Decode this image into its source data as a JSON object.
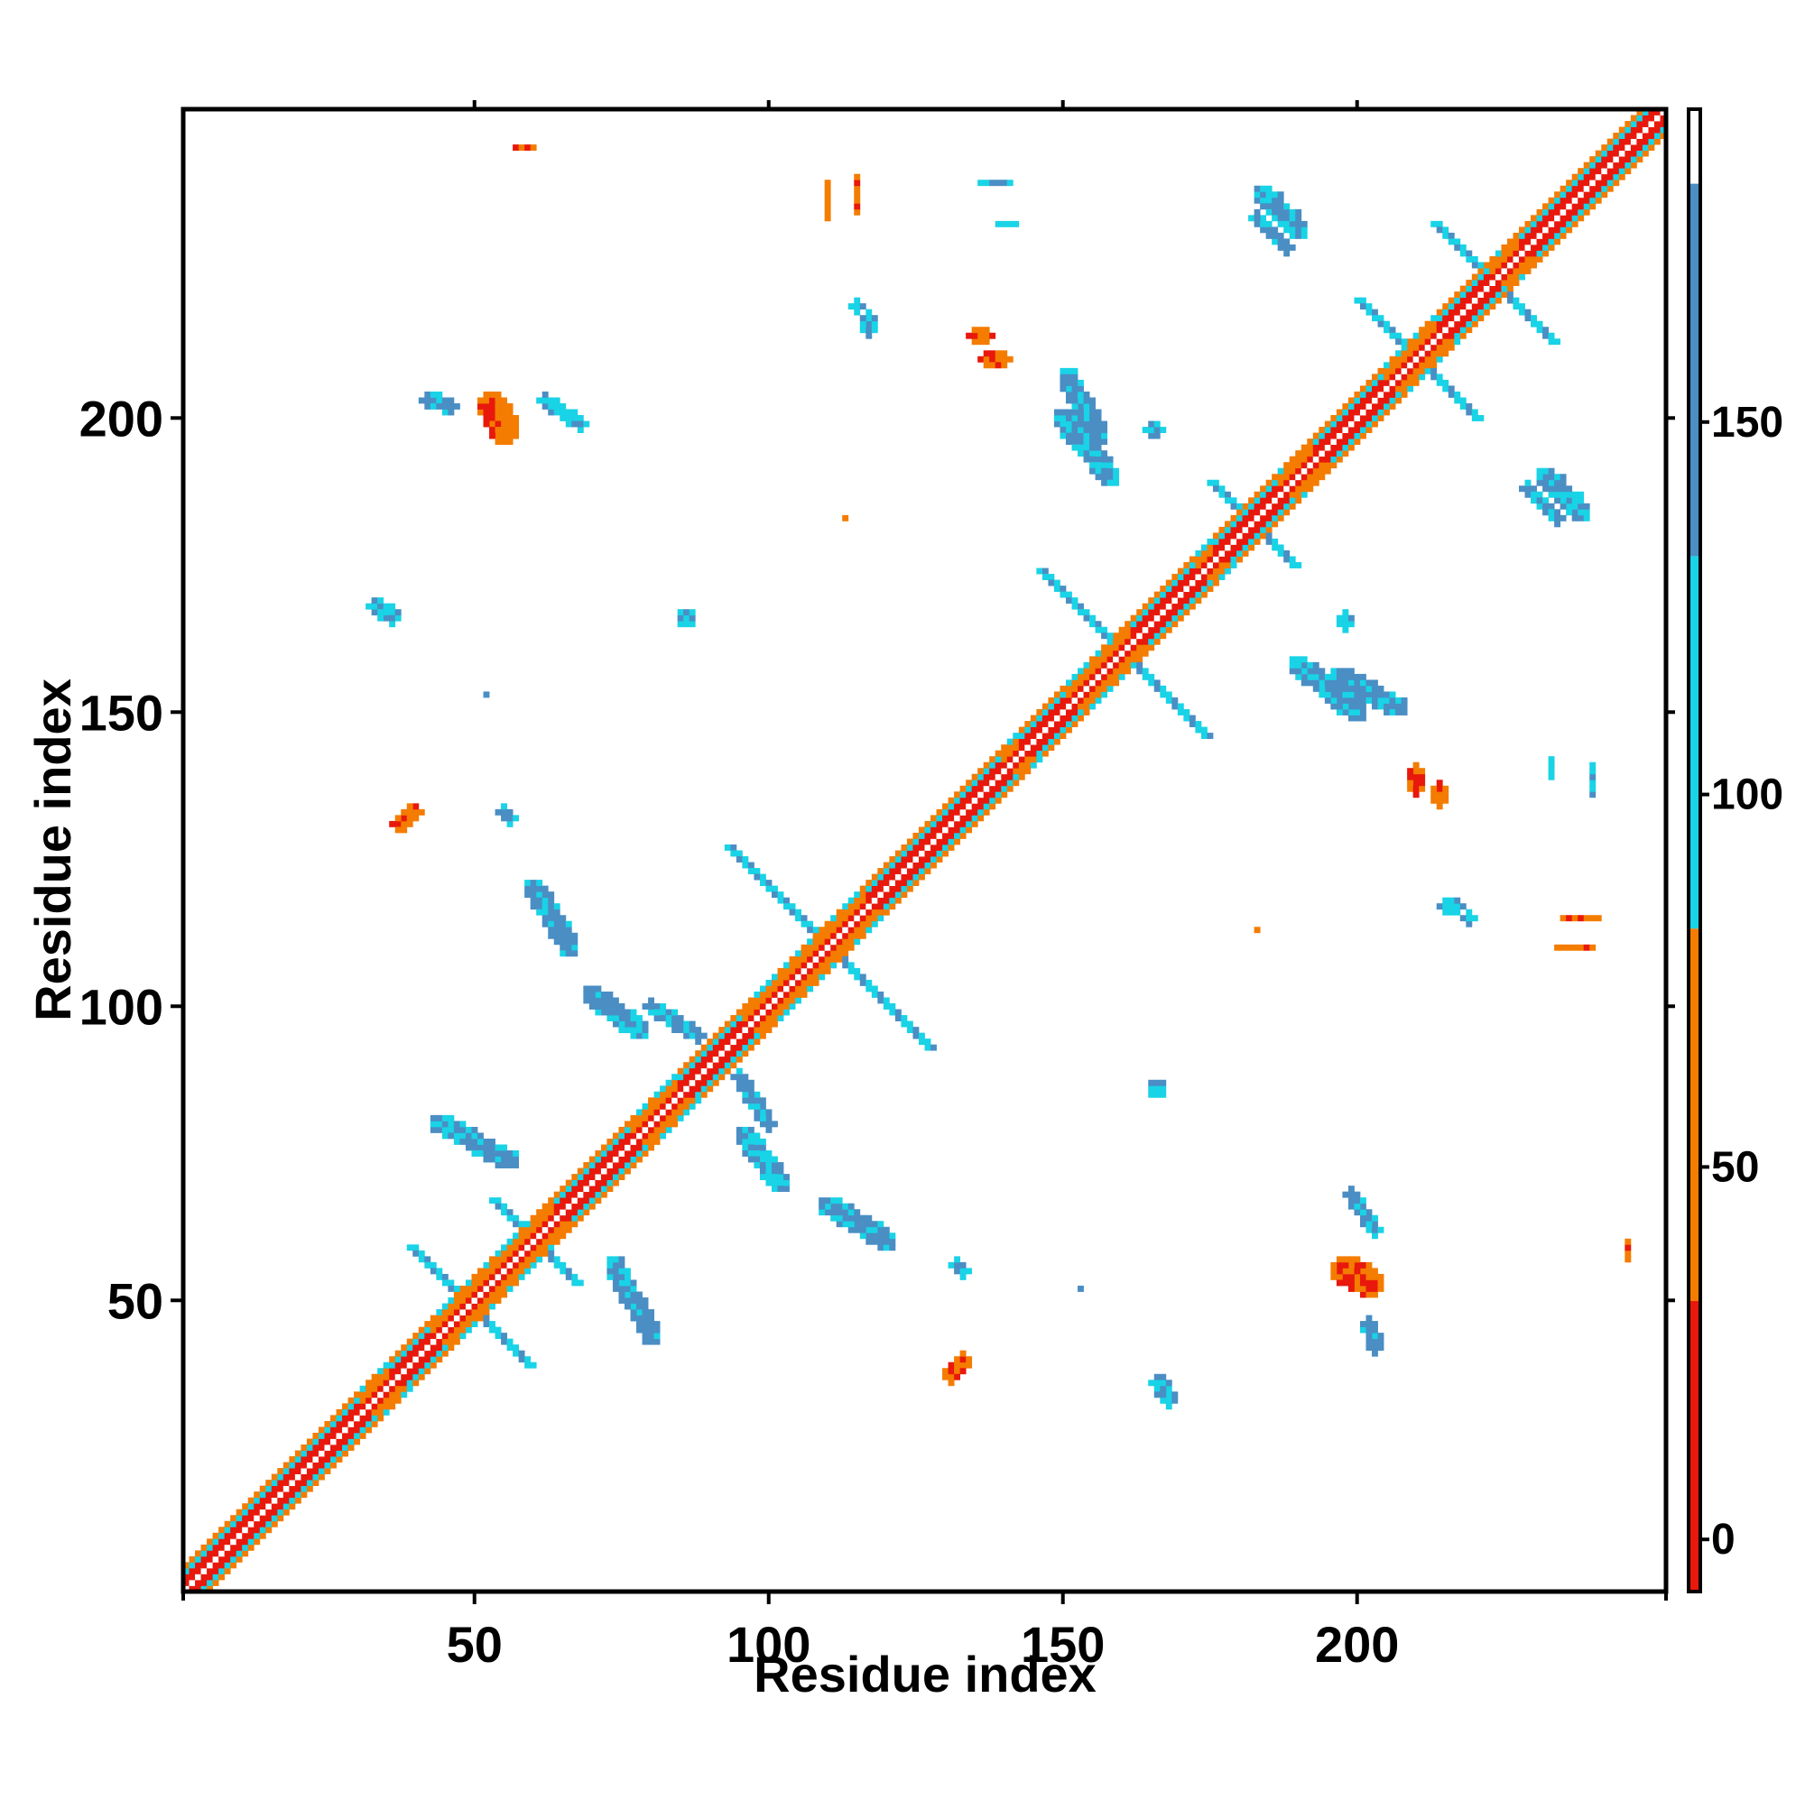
{
  "chart_data": {
    "type": "heatmap",
    "title": "",
    "xlabel": "Residue index",
    "ylabel": "Residue index",
    "xlim": [
      1,
      252
    ],
    "ylim": [
      1,
      252
    ],
    "xticks": [
      50,
      100,
      150,
      200
    ],
    "yticks": [
      50,
      100,
      150,
      200
    ],
    "grid": false,
    "colorbar": {
      "ticks": [
        0,
        50,
        100,
        150
      ],
      "range": [
        -7,
        192
      ],
      "bands": [
        {
          "from": -7,
          "to": 32,
          "color": "#e8180c"
        },
        {
          "from": 32,
          "to": 82,
          "color": "#f47c00"
        },
        {
          "from": 82,
          "to": 132,
          "color": "#19d3e6"
        },
        {
          "from": 132,
          "to": 182,
          "color": "#4a8ec4"
        },
        {
          "from": 182,
          "to": 192,
          "color": "#ffffff"
        }
      ]
    },
    "structure": {
      "diagonal": {
        "from": 1,
        "to": 252
      },
      "helices": [
        [
          1,
          30
        ],
        [
          36,
          42
        ],
        [
          64,
          76
        ],
        [
          85,
          95
        ],
        [
          117,
          139
        ],
        [
          143,
          150
        ],
        [
          162,
          172
        ],
        [
          176,
          186
        ],
        [
          193,
          204
        ],
        [
          214,
          222
        ],
        [
          228,
          252
        ]
      ],
      "antiparallel": [
        {
          "i": 49,
          "j": 49,
          "half": 10
        },
        {
          "i": 60,
          "j": 60,
          "half": 7
        },
        {
          "i": 110,
          "j": 110,
          "half": 17
        },
        {
          "i": 160,
          "j": 160,
          "half": 14
        },
        {
          "i": 182,
          "j": 182,
          "half": 7
        },
        {
          "i": 210,
          "j": 210,
          "half": 10
        },
        {
          "i": 223,
          "j": 223,
          "half": 10
        }
      ],
      "patches": [
        {
          "x": 44,
          "y": 80,
          "dx": 12,
          "dy": -6,
          "w": 1.6,
          "c": 3
        },
        {
          "x": 80,
          "y": 44,
          "dx": -6,
          "dy": 12,
          "w": 1.6,
          "c": 3
        },
        {
          "x": 96,
          "y": 78,
          "dx": 6,
          "dy": -8,
          "w": 1.5,
          "c": 3
        },
        {
          "x": 78,
          "y": 96,
          "dx": -8,
          "dy": 6,
          "w": 1.5,
          "c": 3
        },
        {
          "x": 60,
          "y": 120,
          "dx": 6,
          "dy": -10,
          "w": 1.5,
          "c": 3
        },
        {
          "x": 120,
          "y": 60,
          "dx": -10,
          "dy": 6,
          "w": 1.5,
          "c": 3
        },
        {
          "x": 80,
          "y": 100,
          "dx": 8,
          "dy": -5,
          "w": 1.3,
          "c": 3
        },
        {
          "x": 100,
          "y": 80,
          "dx": -5,
          "dy": 8,
          "w": 1.3,
          "c": 3
        },
        {
          "x": 62,
          "y": 203,
          "dx": 6,
          "dy": -4,
          "w": 1.3,
          "c": 2
        },
        {
          "x": 203,
          "y": 62,
          "dx": -4,
          "dy": 6,
          "w": 1.3,
          "c": 2
        },
        {
          "x": 42,
          "y": 203,
          "dx": 4,
          "dy": -1,
          "w": 1.2,
          "c": 3
        },
        {
          "x": 203,
          "y": 42,
          "dx": -1,
          "dy": 4,
          "w": 1.2,
          "c": 3
        },
        {
          "x": 53,
          "y": 202,
          "dx": 2,
          "dy": -4,
          "w": 2.6,
          "c": 1
        },
        {
          "x": 202,
          "y": 53,
          "dx": -4,
          "dy": 2,
          "w": 2.6,
          "c": 1
        },
        {
          "x": 33,
          "y": 168,
          "dx": 3,
          "dy": -2,
          "w": 1.4,
          "c": 2
        },
        {
          "x": 168,
          "y": 33,
          "dx": -2,
          "dy": 3,
          "w": 1.4,
          "c": 2
        },
        {
          "x": 86,
          "y": 166,
          "dx": 0,
          "dy": 0,
          "w": 1.5,
          "c": 2
        },
        {
          "x": 166,
          "y": 86,
          "dx": 0,
          "dy": 0,
          "w": 1.5,
          "c": 2
        },
        {
          "x": 55,
          "y": 133,
          "dx": 1,
          "dy": -1,
          "w": 1.3,
          "c": 2
        },
        {
          "x": 133,
          "y": 55,
          "dx": -1,
          "dy": 1,
          "w": 1.3,
          "c": 2
        },
        {
          "x": 38,
          "y": 131,
          "dx": 2,
          "dy": 2,
          "w": 1.0,
          "c": 1
        },
        {
          "x": 131,
          "y": 38,
          "dx": 2,
          "dy": 2,
          "w": 1.0,
          "c": 1
        },
        {
          "x": 150,
          "y": 200,
          "dx": 8,
          "dy": -10,
          "w": 1.5,
          "c": 3
        },
        {
          "x": 200,
          "y": 150,
          "dx": -10,
          "dy": 8,
          "w": 1.5,
          "c": 3
        },
        {
          "x": 184,
          "y": 238,
          "dx": 6,
          "dy": -6,
          "w": 1.5,
          "c": 3
        },
        {
          "x": 238,
          "y": 184,
          "dx": -6,
          "dy": 6,
          "w": 1.5,
          "c": 3
        },
        {
          "x": 197,
          "y": 156,
          "dx": 10,
          "dy": -5,
          "w": 1.5,
          "c": 3
        },
        {
          "x": 156,
          "y": 197,
          "dx": -5,
          "dy": 10,
          "w": 1.5,
          "c": 3
        },
        {
          "x": 229,
          "y": 188,
          "dx": 5,
          "dy": -5,
          "w": 1.4,
          "c": 3
        },
        {
          "x": 188,
          "y": 229,
          "dx": -5,
          "dy": 5,
          "w": 1.4,
          "c": 3
        },
        {
          "x": 136,
          "y": 240,
          "dx": 5,
          "dy": 0,
          "w": 0.8,
          "c": 2
        },
        {
          "x": 240,
          "y": 136,
          "dx": 0,
          "dy": 5,
          "w": 0.8,
          "c": 2
        },
        {
          "x": 135,
          "y": 214,
          "dx": 2,
          "dy": 0,
          "w": 1.0,
          "c": 1
        },
        {
          "x": 214,
          "y": 135,
          "dx": 0,
          "dy": 2,
          "w": 1.0,
          "c": 1
        },
        {
          "x": 115,
          "y": 235,
          "dx": 0,
          "dy": 6,
          "w": 0.8,
          "c": 1
        },
        {
          "x": 235,
          "y": 115,
          "dx": 6,
          "dy": 0,
          "w": 0.8,
          "c": 1
        },
        {
          "x": 57,
          "y": 246,
          "dx": 3,
          "dy": 0,
          "w": 0.8,
          "c": 1
        },
        {
          "x": 246,
          "y": 57,
          "dx": 0,
          "dy": 3,
          "w": 0.8,
          "c": 1
        },
        {
          "x": 115,
          "y": 219,
          "dx": 0,
          "dy": 0,
          "w": 1.0,
          "c": 2
        },
        {
          "x": 219,
          "y": 115,
          "dx": 0,
          "dy": 0,
          "w": 1.0,
          "c": 2
        },
        {
          "x": 165,
          "y": 198,
          "dx": 1,
          "dy": 0,
          "w": 1.0,
          "c": 2
        },
        {
          "x": 198,
          "y": 165,
          "dx": 0,
          "dy": 1,
          "w": 1.0,
          "c": 2
        },
        {
          "x": 234,
          "y": 110,
          "dx": 6,
          "dy": 0,
          "w": 0.8,
          "c": 1
        },
        {
          "x": 110,
          "y": 234,
          "dx": 0,
          "dy": 6,
          "w": 0.8,
          "c": 1
        },
        {
          "x": 215,
          "y": 117,
          "dx": 2,
          "dy": 0,
          "w": 1.0,
          "c": 2
        },
        {
          "x": 117,
          "y": 215,
          "dx": 0,
          "dy": 2,
          "w": 1.0,
          "c": 2
        },
        {
          "x": 210,
          "y": 137,
          "dx": 0,
          "dy": 3,
          "w": 1.0,
          "c": 1
        },
        {
          "x": 137,
          "y": 210,
          "dx": 3,
          "dy": 0,
          "w": 1.0,
          "c": 1
        },
        {
          "x": 233,
          "y": 139,
          "dx": 0,
          "dy": 3,
          "w": 0.9,
          "c": 2
        },
        {
          "x": 139,
          "y": 233,
          "dx": 3,
          "dy": 0,
          "w": 0.9,
          "c": 2
        },
        {
          "x": 167,
          "y": 34,
          "dx": 0,
          "dy": 2,
          "w": 1.2,
          "c": 2
        },
        {
          "x": 34,
          "y": 167,
          "dx": 2,
          "dy": 0,
          "w": 1.2,
          "c": 2
        },
        {
          "x": 133,
          "y": 39,
          "dx": -2,
          "dy": -2,
          "w": 1.0,
          "c": 1
        },
        {
          "x": 39,
          "y": 133,
          "dx": -2,
          "dy": -2,
          "w": 1.0,
          "c": 1
        },
        {
          "x": 153,
          "y": 52,
          "dx": 0,
          "dy": 0,
          "w": 0.8,
          "c": 3
        },
        {
          "x": 52,
          "y": 153,
          "dx": 0,
          "dy": 0,
          "w": 0.8,
          "c": 3
        },
        {
          "x": 183,
          "y": 113,
          "dx": 0,
          "dy": 0,
          "w": 0.8,
          "c": 1
        },
        {
          "x": 113,
          "y": 183,
          "dx": 0,
          "dy": 0,
          "w": 0.8,
          "c": 1
        }
      ]
    }
  }
}
